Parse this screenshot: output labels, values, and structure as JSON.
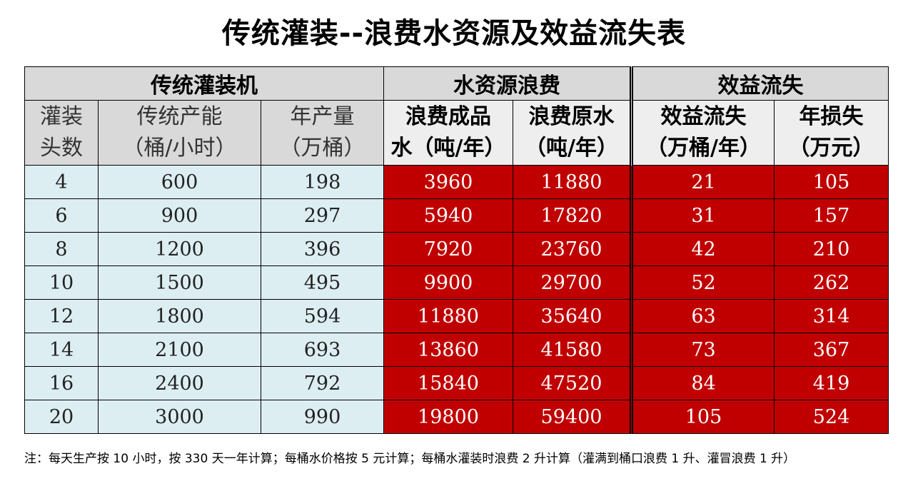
{
  "title": "传统灌装--浪费水资源及效益流失表",
  "groups": {
    "machine": "传统灌装机",
    "water": "水资源浪费",
    "loss": "效益流失"
  },
  "columns": [
    {
      "line1": "灌装",
      "line2": "头数"
    },
    {
      "line1": "传统产能",
      "line2": "（桶/小时）"
    },
    {
      "line1": "年产量",
      "line2": "（万桶）"
    },
    {
      "line1": "浪费成品",
      "line2": "水（吨/年）"
    },
    {
      "line1": "浪费原水",
      "line2": "（吨/年）"
    },
    {
      "line1": "效益流失",
      "line2": "（万桶/年）"
    },
    {
      "line1": "年损失",
      "line2": "（万元）"
    }
  ],
  "rows": [
    [
      "4",
      "600",
      "198",
      "3960",
      "11880",
      "21",
      "105"
    ],
    [
      "6",
      "900",
      "297",
      "5940",
      "17820",
      "31",
      "157"
    ],
    [
      "8",
      "1200",
      "396",
      "7920",
      "23760",
      "42",
      "210"
    ],
    [
      "10",
      "1500",
      "495",
      "9900",
      "29700",
      "52",
      "262"
    ],
    [
      "12",
      "1800",
      "594",
      "11880",
      "35640",
      "63",
      "314"
    ],
    [
      "14",
      "2100",
      "693",
      "13860",
      "41580",
      "73",
      "367"
    ],
    [
      "16",
      "2400",
      "792",
      "15840",
      "47520",
      "84",
      "419"
    ],
    [
      "20",
      "3000",
      "990",
      "19800",
      "59400",
      "105",
      "524"
    ]
  ],
  "colors": {
    "header_gray": "#d9d9d9",
    "header_light": "#eeeeee",
    "input_cyan": "#ddeef3",
    "loss_red": "#c00000"
  },
  "note": "注：每天生产按 10 小时，按 330 天一年计算；每桶水价格按 5 元计算；每桶水灌装时浪费 2 升计算（灌满到桶口浪费 1 升、灌冒浪费 1 升）"
}
